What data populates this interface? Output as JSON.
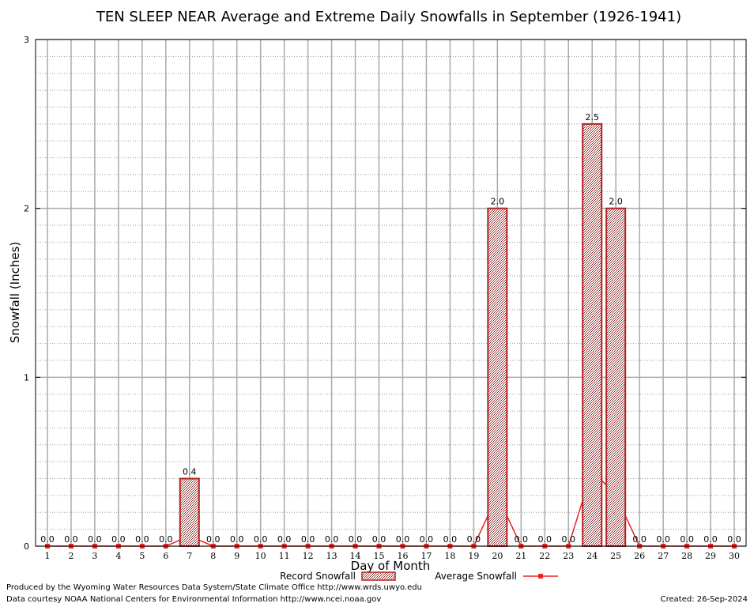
{
  "chart_data": {
    "type": "bar",
    "title": "TEN SLEEP NEAR Average and Extreme Daily Snowfalls in September (1926-1941)",
    "xlabel": "Day of Month",
    "ylabel": "Snowfall (Inches)",
    "ylim": [
      0,
      3
    ],
    "y_ticks": [
      0,
      1,
      2,
      3
    ],
    "grid": true,
    "categories": [
      "1",
      "2",
      "3",
      "4",
      "5",
      "6",
      "7",
      "8",
      "9",
      "10",
      "11",
      "12",
      "13",
      "14",
      "15",
      "16",
      "17",
      "18",
      "19",
      "20",
      "21",
      "22",
      "23",
      "24",
      "25",
      "26",
      "27",
      "28",
      "29",
      "30"
    ],
    "series": [
      {
        "name": "Record Snowfall",
        "kind": "bar",
        "color": "#b22222",
        "values": [
          0,
          0,
          0,
          0,
          0,
          0,
          0.4,
          0,
          0,
          0,
          0,
          0,
          0,
          0,
          0,
          0,
          0,
          0,
          0,
          2.0,
          0,
          0,
          0,
          2.5,
          2.0,
          0,
          0,
          0,
          0,
          0
        ],
        "labels": [
          "0.0",
          "0.0",
          "0.0",
          "0.0",
          "0.0",
          "0.0",
          "0.4",
          "0.0",
          "0.0",
          "0.0",
          "0.0",
          "0.0",
          "0.0",
          "0.0",
          "0.0",
          "0.0",
          "0.0",
          "0.0",
          "0.0",
          "2.0",
          "0.0",
          "0.0",
          "0.0",
          "2.5",
          "2.0",
          "0.0",
          "0.0",
          "0.0",
          "0.0",
          "0.0"
        ]
      },
      {
        "name": "Average Snowfall",
        "kind": "line",
        "color": "#ee2222",
        "values": [
          0,
          0,
          0,
          0,
          0,
          0,
          0.06,
          0,
          0,
          0,
          0,
          0,
          0,
          0,
          0,
          0,
          0,
          0,
          0,
          0.3,
          0,
          0,
          0,
          0.45,
          0.3,
          0,
          0,
          0,
          0,
          0
        ]
      }
    ],
    "legend_position": "bottom-center"
  },
  "credits": {
    "produced_by": "Produced by the Wyoming Water Resources Data System/State Climate Office http://www.wrds.uwyo.edu",
    "courtesy": "Data courtesy NOAA National Centers for Environmental Information http://www.ncei.noaa.gov",
    "created": "Created:  26-Sep-2024"
  }
}
